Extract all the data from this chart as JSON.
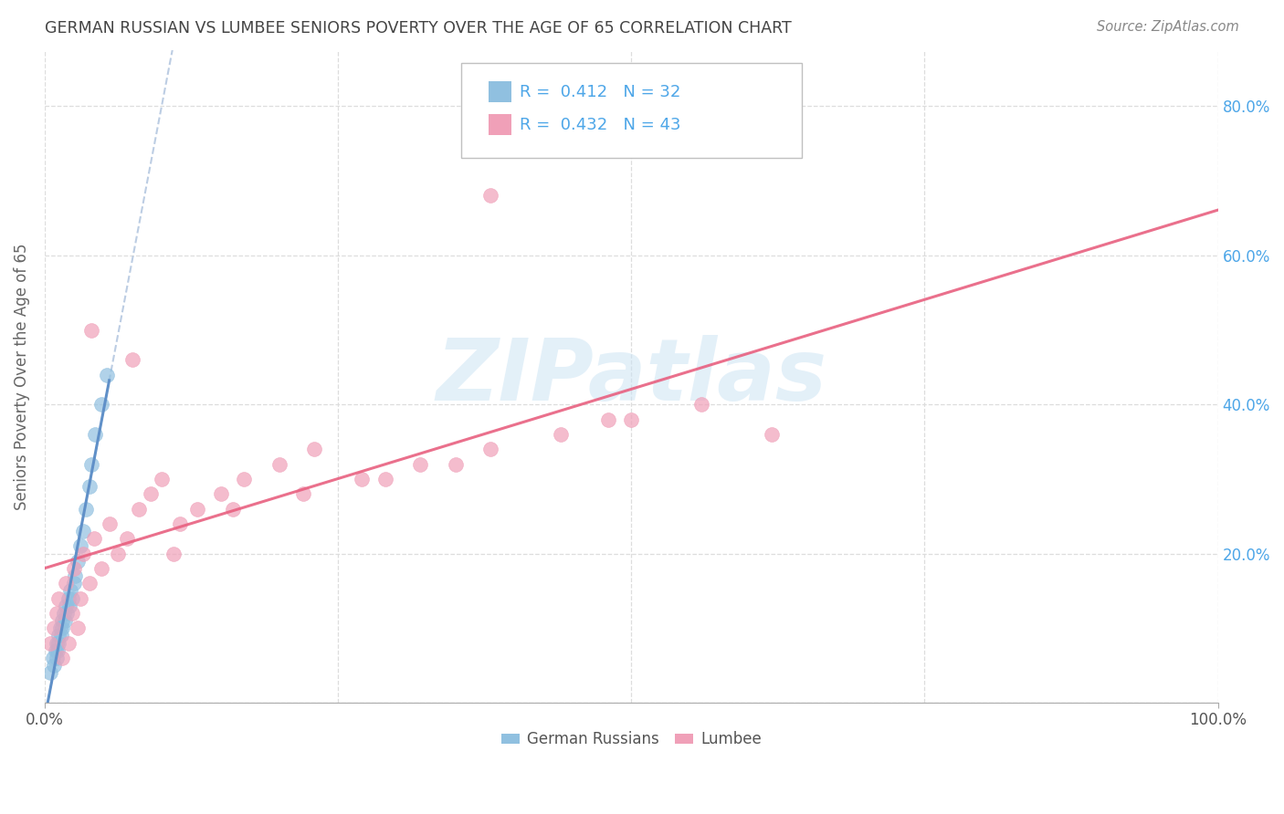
{
  "title": "GERMAN RUSSIAN VS LUMBEE SENIORS POVERTY OVER THE AGE OF 65 CORRELATION CHART",
  "source": "Source: ZipAtlas.com",
  "ylabel": "Seniors Poverty Over the Age of 65",
  "watermark": "ZIPatlas",
  "xlim": [
    0.0,
    1.0
  ],
  "ylim": [
    0.0,
    0.875
  ],
  "german_russian_color": "#90c0e0",
  "lumbee_color": "#f0a0b8",
  "german_russian_line_color": "#6090c8",
  "lumbee_line_color": "#e86080",
  "german_russian_line_dashed_color": "#a0b8d8",
  "R_german": 0.412,
  "N_german": 32,
  "R_lumbee": 0.432,
  "N_lumbee": 43,
  "legend_label_german": "German Russians",
  "legend_label_lumbee": "Lumbee",
  "legend_text_color": "#4da6e8",
  "right_axis_color": "#4da6e8",
  "title_color": "#444444",
  "source_color": "#888888",
  "ylabel_color": "#666666",
  "grid_color": "#dddddd",
  "german_russian_x": [
    0.005,
    0.007,
    0.008,
    0.009,
    0.01,
    0.01,
    0.011,
    0.012,
    0.012,
    0.013,
    0.014,
    0.015,
    0.015,
    0.016,
    0.017,
    0.018,
    0.019,
    0.02,
    0.021,
    0.022,
    0.023,
    0.025,
    0.026,
    0.028,
    0.03,
    0.033,
    0.035,
    0.038,
    0.04,
    0.043,
    0.048,
    0.053
  ],
  "german_russian_y": [
    0.04,
    0.06,
    0.05,
    0.07,
    0.06,
    0.08,
    0.07,
    0.09,
    0.08,
    0.1,
    0.09,
    0.11,
    0.1,
    0.12,
    0.11,
    0.13,
    0.12,
    0.14,
    0.13,
    0.15,
    0.14,
    0.16,
    0.17,
    0.19,
    0.21,
    0.23,
    0.26,
    0.29,
    0.32,
    0.36,
    0.4,
    0.44
  ],
  "lumbee_x": [
    0.005,
    0.008,
    0.01,
    0.012,
    0.015,
    0.018,
    0.02,
    0.023,
    0.025,
    0.028,
    0.03,
    0.033,
    0.038,
    0.042,
    0.048,
    0.055,
    0.062,
    0.07,
    0.08,
    0.09,
    0.1,
    0.115,
    0.13,
    0.15,
    0.17,
    0.2,
    0.23,
    0.27,
    0.32,
    0.38,
    0.44,
    0.5,
    0.56,
    0.62,
    0.48,
    0.38,
    0.04,
    0.075,
    0.11,
    0.16,
    0.22,
    0.29,
    0.35
  ],
  "lumbee_y": [
    0.08,
    0.1,
    0.12,
    0.14,
    0.06,
    0.16,
    0.08,
    0.12,
    0.18,
    0.1,
    0.14,
    0.2,
    0.16,
    0.22,
    0.18,
    0.24,
    0.2,
    0.22,
    0.26,
    0.28,
    0.3,
    0.24,
    0.26,
    0.28,
    0.3,
    0.32,
    0.34,
    0.3,
    0.32,
    0.34,
    0.36,
    0.38,
    0.4,
    0.36,
    0.38,
    0.68,
    0.5,
    0.46,
    0.2,
    0.26,
    0.28,
    0.3,
    0.32
  ]
}
